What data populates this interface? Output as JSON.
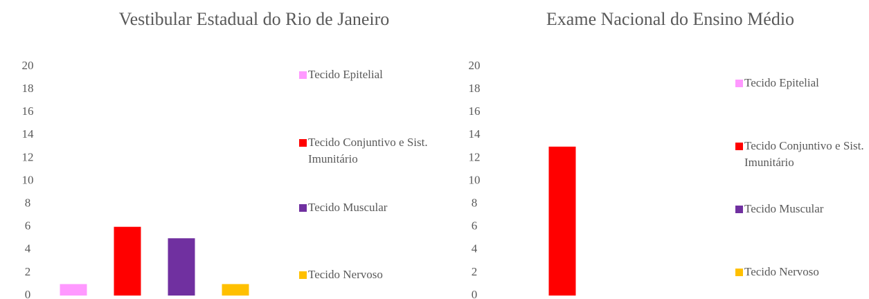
{
  "chart_data": [
    {
      "type": "bar",
      "title": "Vestibular Estadual do Rio de Janeiro",
      "categories": [
        "Tecido Epitelial",
        "Tecido Conjuntivo e Sist. Imunitário",
        "Tecido Muscular",
        "Tecido Nervoso"
      ],
      "values": [
        1,
        6,
        5,
        1
      ],
      "colors": [
        "#ff99ff",
        "#ff0000",
        "#7030a0",
        "#ffc000"
      ],
      "ylim": [
        0,
        20
      ],
      "yticks": [
        0,
        2,
        4,
        6,
        8,
        10,
        12,
        14,
        16,
        18,
        20
      ],
      "legend": "right"
    },
    {
      "type": "bar",
      "title": "Exame Nacional do Ensino Médio",
      "categories": [
        "Tecido Epitelial",
        "Tecido Conjuntivo e Sist. Imunitário",
        "Tecido Muscular",
        "Tecido Nervoso"
      ],
      "values": [
        0,
        13,
        0,
        0
      ],
      "colors": [
        "#ff99ff",
        "#ff0000",
        "#7030a0",
        "#ffc000"
      ],
      "ylim": [
        0,
        20
      ],
      "yticks": [
        0,
        2,
        4,
        6,
        8,
        10,
        12,
        14,
        16,
        18,
        20
      ],
      "legend": "right"
    }
  ]
}
